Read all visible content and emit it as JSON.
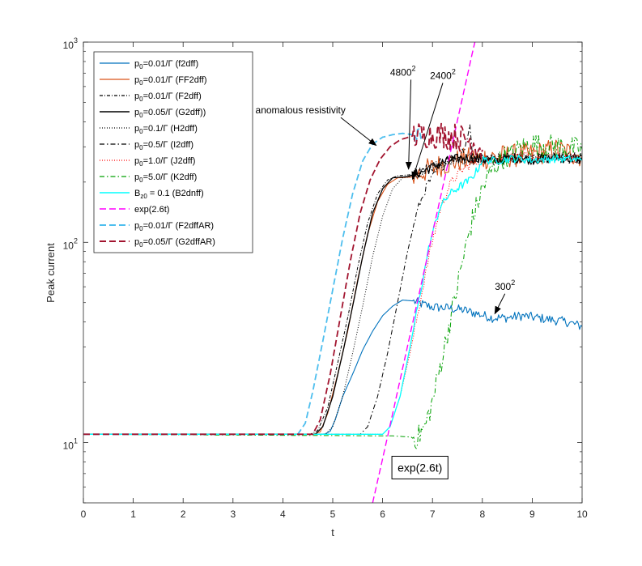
{
  "chart_data": {
    "type": "line",
    "title": "",
    "xlabel": "t",
    "ylabel": "Peak current",
    "xlim": [
      0,
      10
    ],
    "ylim": [
      5,
      1000
    ],
    "yscale": "log",
    "x_ticks": [
      0,
      1,
      2,
      3,
      4,
      5,
      6,
      7,
      8,
      9,
      10
    ],
    "y_ticks": [
      {
        "value": 10,
        "base": "10",
        "exp": "1"
      },
      {
        "value": 100,
        "base": "10",
        "exp": "2"
      },
      {
        "value": 1000,
        "base": "10",
        "exp": "3"
      }
    ],
    "legend_position": "top-left",
    "series": [
      {
        "name": "p0=0.01/Γ (f2dff)",
        "label_parts": [
          "p",
          "0",
          "=0.01/Γ (f2dff)"
        ],
        "color": "#0072bd",
        "dash": "solid",
        "width": 1.1,
        "points": [
          [
            0,
            11
          ],
          [
            4.7,
            11
          ],
          [
            4.85,
            11.05
          ],
          [
            4.95,
            11.4
          ],
          [
            5.05,
            13
          ],
          [
            5.2,
            17
          ],
          [
            5.4,
            22
          ],
          [
            5.6,
            29
          ],
          [
            5.8,
            36
          ],
          [
            6.0,
            43
          ],
          [
            6.2,
            48
          ],
          [
            6.4,
            51.5
          ],
          [
            6.6,
            51
          ],
          [
            6.8,
            49
          ],
          [
            7.0,
            47.5
          ],
          [
            7.3,
            47
          ],
          [
            7.6,
            46
          ],
          [
            7.9,
            44
          ],
          [
            8.2,
            42
          ],
          [
            8.5,
            42
          ],
          [
            8.8,
            43
          ],
          [
            9.1,
            42
          ],
          [
            9.4,
            41
          ],
          [
            9.7,
            40
          ],
          [
            10,
            38
          ]
        ],
        "noise": 0.012
      },
      {
        "name": "p0=0.01/Γ (FF2dff)",
        "label_parts": [
          "p",
          "0",
          "=0.01/Γ (FF2dff)"
        ],
        "color": "#d95319",
        "dash": "solid",
        "width": 1.1,
        "points": [
          [
            0,
            11
          ],
          [
            4.6,
            11
          ],
          [
            4.75,
            11.3
          ],
          [
            4.9,
            14
          ],
          [
            5.1,
            22
          ],
          [
            5.3,
            36
          ],
          [
            5.5,
            65
          ],
          [
            5.7,
            110
          ],
          [
            5.9,
            160
          ],
          [
            6.1,
            195
          ],
          [
            6.3,
            210
          ],
          [
            6.6,
            212
          ],
          [
            6.9,
            230
          ],
          [
            7.2,
            245
          ],
          [
            7.5,
            255
          ],
          [
            7.8,
            262
          ],
          [
            8.1,
            265
          ],
          [
            8.5,
            270
          ],
          [
            9.0,
            275
          ],
          [
            9.5,
            290
          ],
          [
            10,
            270
          ]
        ],
        "noise": 0.03
      },
      {
        "name": "p0=0.01/Γ (F2dff)",
        "label_parts": [
          "p",
          "0",
          "=0.01/Γ (F2dff)"
        ],
        "color": "#000000",
        "dash": "4,2,1,2",
        "width": 1.0,
        "points": [
          [
            0,
            11
          ],
          [
            4.55,
            11
          ],
          [
            4.7,
            11.5
          ],
          [
            4.9,
            15
          ],
          [
            5.1,
            25
          ],
          [
            5.3,
            42
          ],
          [
            5.5,
            75
          ],
          [
            5.7,
            125
          ],
          [
            5.9,
            175
          ],
          [
            6.1,
            205
          ],
          [
            6.3,
            215
          ],
          [
            6.6,
            218
          ],
          [
            6.9,
            235
          ],
          [
            7.2,
            250
          ],
          [
            7.5,
            258
          ],
          [
            7.8,
            262
          ],
          [
            8.2,
            258
          ],
          [
            8.6,
            262
          ],
          [
            9.0,
            265
          ],
          [
            9.5,
            268
          ],
          [
            10,
            262
          ]
        ],
        "noise": 0.015
      },
      {
        "name": "p0=0.05/Γ (G2dff))",
        "label_parts": [
          "p",
          "0",
          "=0.05/Γ (G2dff))"
        ],
        "color": "#000000",
        "dash": "solid",
        "width": 1.3,
        "points": [
          [
            0,
            11
          ],
          [
            4.65,
            11
          ],
          [
            4.8,
            12
          ],
          [
            5.0,
            17
          ],
          [
            5.2,
            28
          ],
          [
            5.4,
            48
          ],
          [
            5.6,
            85
          ],
          [
            5.8,
            140
          ],
          [
            6.0,
            185
          ],
          [
            6.2,
            210
          ],
          [
            6.5,
            213
          ],
          [
            6.8,
            225
          ],
          [
            7.1,
            245
          ],
          [
            7.4,
            260
          ],
          [
            7.7,
            265
          ],
          [
            8.0,
            258
          ],
          [
            8.3,
            255
          ],
          [
            8.6,
            265
          ],
          [
            9.0,
            258
          ],
          [
            9.5,
            265
          ],
          [
            10,
            258
          ]
        ],
        "noise": 0.012
      },
      {
        "name": "p0=0.1/Γ (H2dff)",
        "label_parts": [
          "p",
          "0",
          "=0.1/Γ (H2dff)"
        ],
        "color": "#000000",
        "dash": "1,2",
        "width": 1.0,
        "points": [
          [
            0,
            11
          ],
          [
            4.85,
            11
          ],
          [
            5.0,
            12
          ],
          [
            5.2,
            17
          ],
          [
            5.4,
            28
          ],
          [
            5.6,
            48
          ],
          [
            5.8,
            85
          ],
          [
            6.0,
            135
          ],
          [
            6.2,
            185
          ],
          [
            6.4,
            210
          ],
          [
            6.7,
            215
          ],
          [
            7.0,
            235
          ],
          [
            7.3,
            250
          ],
          [
            7.6,
            262
          ],
          [
            8.0,
            262
          ],
          [
            8.4,
            258
          ],
          [
            8.8,
            268
          ],
          [
            9.2,
            262
          ],
          [
            9.6,
            268
          ],
          [
            10,
            260
          ]
        ],
        "noise": 0.012
      },
      {
        "name": "p0=0.5/Γ (I2dff)",
        "label_parts": [
          "p",
          "0",
          "=0.5/Γ (I2dff)"
        ],
        "color": "#000000",
        "dash": "6,3,1.5,3",
        "width": 1.0,
        "points": [
          [
            0,
            11
          ],
          [
            5.55,
            11
          ],
          [
            5.7,
            12
          ],
          [
            5.9,
            17
          ],
          [
            6.1,
            28
          ],
          [
            6.3,
            50
          ],
          [
            6.5,
            90
          ],
          [
            6.7,
            145
          ],
          [
            6.9,
            195
          ],
          [
            7.1,
            230
          ],
          [
            7.3,
            250
          ],
          [
            7.5,
            262
          ],
          [
            7.65,
            300
          ],
          [
            7.75,
            380
          ],
          [
            7.82,
            250
          ],
          [
            8.0,
            258
          ],
          [
            8.4,
            262
          ],
          [
            8.8,
            265
          ],
          [
            9.2,
            265
          ],
          [
            9.6,
            270
          ],
          [
            10,
            265
          ]
        ],
        "noise": 0.01
      },
      {
        "name": "p0=1.0/Γ (J2dff)",
        "label_parts": [
          "p",
          "0",
          "=1.0/Γ (J2dff)"
        ],
        "color": "#ff0000",
        "dash": "1,2",
        "width": 1.0,
        "points": [
          [
            0,
            11
          ],
          [
            6.0,
            11
          ],
          [
            6.15,
            12
          ],
          [
            6.35,
            17
          ],
          [
            6.55,
            28
          ],
          [
            6.75,
            50
          ],
          [
            6.95,
            90
          ],
          [
            7.15,
            145
          ],
          [
            7.35,
            195
          ],
          [
            7.55,
            225
          ],
          [
            7.75,
            245
          ],
          [
            8.0,
            258
          ],
          [
            8.4,
            262
          ],
          [
            8.8,
            268
          ],
          [
            9.2,
            262
          ],
          [
            9.6,
            268
          ],
          [
            10,
            260
          ]
        ],
        "noise": 0.012
      },
      {
        "name": "p0=5.0/Γ (K2dff)",
        "label_parts": [
          "p",
          "0",
          "=5.0/Γ (K2dff)"
        ],
        "color": "#00a000",
        "dash": "6,3,1.5,3",
        "width": 1.0,
        "points": [
          [
            0,
            11
          ],
          [
            6.2,
            10.8
          ],
          [
            6.7,
            10.6
          ],
          [
            6.85,
            12
          ],
          [
            7.0,
            16
          ],
          [
            7.2,
            27
          ],
          [
            7.4,
            46
          ],
          [
            7.6,
            80
          ],
          [
            7.8,
            130
          ],
          [
            8.0,
            185
          ],
          [
            8.2,
            235
          ],
          [
            8.4,
            262
          ],
          [
            8.6,
            275
          ],
          [
            8.8,
            300
          ],
          [
            9.0,
            310
          ],
          [
            9.3,
            305
          ],
          [
            9.6,
            300
          ],
          [
            10,
            290
          ]
        ],
        "noise": 0.03
      },
      {
        "name": "Bz0 = 0.1 (B2dnff)",
        "label_parts": [
          "B",
          "z0",
          " = 0.1 (B2dnff)"
        ],
        "color": "#00ffff",
        "dash": "solid",
        "width": 1.3,
        "points": [
          [
            0,
            11
          ],
          [
            6.0,
            11
          ],
          [
            6.15,
            12
          ],
          [
            6.35,
            17
          ],
          [
            6.55,
            30
          ],
          [
            6.75,
            55
          ],
          [
            6.95,
            100
          ],
          [
            7.15,
            150
          ],
          [
            7.35,
            175
          ],
          [
            7.55,
            190
          ],
          [
            7.75,
            205
          ],
          [
            7.9,
            230
          ],
          [
            8.0,
            260
          ],
          [
            8.2,
            255
          ],
          [
            8.6,
            262
          ],
          [
            9.0,
            258
          ],
          [
            9.5,
            262
          ],
          [
            10,
            258
          ]
        ],
        "noise": 0.01
      },
      {
        "name": "exp(2.6t)",
        "label_parts": [
          "exp(2.6t)",
          "",
          ""
        ],
        "color": "#ff00ff",
        "dash": "8,4",
        "width": 1.4,
        "points": [
          [
            5.8,
            5
          ],
          [
            6.0,
            8.3
          ],
          [
            6.2,
            13.9
          ],
          [
            6.4,
            23.4
          ],
          [
            6.6,
            39.3
          ],
          [
            6.8,
            66
          ],
          [
            7.0,
            111
          ],
          [
            7.2,
            186
          ],
          [
            7.4,
            313
          ],
          [
            7.6,
            526
          ],
          [
            7.8,
            884
          ],
          [
            7.85,
            1000
          ]
        ],
        "noise": 0
      },
      {
        "name": "p0=0.01/Γ (F2dffAR)",
        "label_parts": [
          "p",
          "0",
          "=0.01/Γ (F2dffAR)"
        ],
        "color": "#4dbeee",
        "dash": "8,4",
        "width": 1.8,
        "points": [
          [
            0,
            11
          ],
          [
            4.3,
            11
          ],
          [
            4.45,
            12.5
          ],
          [
            4.6,
            18
          ],
          [
            4.8,
            32
          ],
          [
            5.0,
            58
          ],
          [
            5.2,
            105
          ],
          [
            5.4,
            175
          ],
          [
            5.6,
            255
          ],
          [
            5.8,
            310
          ],
          [
            6.0,
            335
          ],
          [
            6.2,
            345
          ],
          [
            6.4,
            350
          ],
          [
            6.6,
            345
          ],
          [
            6.8,
            338
          ]
        ],
        "noise": 0.02
      },
      {
        "name": "p0=0.05/Γ (G2dffAR)",
        "label_parts": [
          "p",
          "0",
          "=0.05/Γ (G2dffAR)"
        ],
        "color": "#a2142f",
        "dash": "8,4",
        "width": 1.8,
        "points": [
          [
            0,
            11
          ],
          [
            4.6,
            11
          ],
          [
            4.75,
            13
          ],
          [
            4.95,
            22
          ],
          [
            5.15,
            42
          ],
          [
            5.35,
            80
          ],
          [
            5.55,
            140
          ],
          [
            5.75,
            205
          ],
          [
            5.95,
            260
          ],
          [
            6.15,
            300
          ],
          [
            6.35,
            325
          ],
          [
            6.6,
            340
          ],
          [
            6.9,
            345
          ],
          [
            7.2,
            345
          ],
          [
            7.5,
            335
          ],
          [
            7.8,
            320
          ],
          [
            8.0,
            290
          ]
        ],
        "noise": 0.035
      }
    ],
    "annotations": [
      {
        "text": "anomalous resistivity",
        "x": 3.45,
        "y": 440,
        "arrow_to": [
          5.87,
          305
        ]
      },
      {
        "text": "4800",
        "sup": "2",
        "x": 6.15,
        "y": 680,
        "arrow_to": [
          6.52,
          232
        ]
      },
      {
        "text": "2400",
        "sup": "2",
        "x": 6.95,
        "y": 655,
        "arrow_to": [
          6.6,
          207
        ]
      },
      {
        "text": "300",
        "sup": "2",
        "x": 8.25,
        "y": 58,
        "arrow_to": [
          8.25,
          44
        ]
      }
    ],
    "boxed_annotation": {
      "text": "exp(2.6t)",
      "x": 6.17,
      "y": 7.5
    }
  }
}
